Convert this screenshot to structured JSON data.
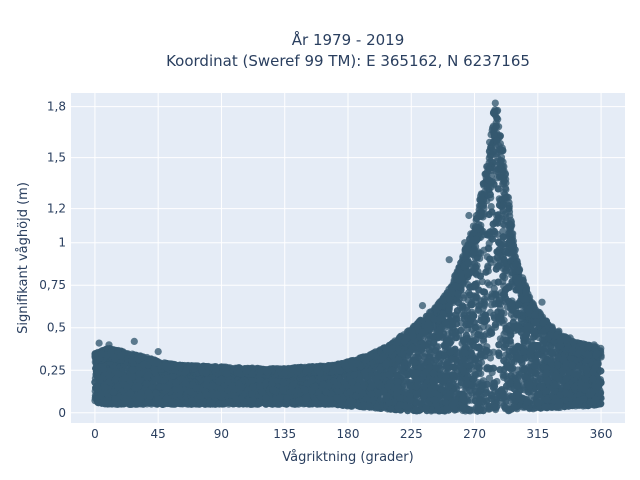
{
  "chart_data": {
    "type": "scatter",
    "title_lines": [
      "År 1979 - 2019",
      "Koordinat (Sweref 99 TM): E 365162, N 6237165"
    ],
    "xlabel": "Vågriktning (grader)",
    "ylabel": "Signifikant våghöjd (m)",
    "xlim": [
      -17,
      377
    ],
    "ylim": [
      -0.06,
      1.88
    ],
    "x_ticks": [
      0,
      45,
      90,
      135,
      180,
      225,
      270,
      315,
      360
    ],
    "x_tick_labels": [
      "0",
      "45",
      "90",
      "135",
      "180",
      "225",
      "270",
      "315",
      "360"
    ],
    "y_ticks": [
      0,
      0.25,
      0.5,
      0.75,
      1,
      1.2,
      1.5,
      1.8
    ],
    "y_tick_labels": [
      "0",
      "0,25",
      "0,5",
      "0,75",
      "1",
      "1,2",
      "1,5",
      "1,8"
    ],
    "grid": true,
    "legend": "none",
    "marker_color": "#34586f",
    "plot_bg": "#e5ecf6",
    "series": [
      {
        "envelope": {
          "x": [
            0,
            10,
            20,
            30,
            40,
            45,
            60,
            90,
            120,
            135,
            150,
            170,
            180,
            195,
            210,
            225,
            240,
            250,
            260,
            265,
            270,
            275,
            280,
            283,
            285,
            287,
            290,
            295,
            300,
            310,
            320,
            330,
            340,
            350,
            360
          ],
          "y_max": [
            0.35,
            0.38,
            0.36,
            0.34,
            0.32,
            0.3,
            0.28,
            0.27,
            0.26,
            0.26,
            0.27,
            0.28,
            0.3,
            0.34,
            0.4,
            0.5,
            0.6,
            0.7,
            0.88,
            1.0,
            1.12,
            1.3,
            1.55,
            1.75,
            1.84,
            1.8,
            1.55,
            1.2,
            0.9,
            0.66,
            0.55,
            0.47,
            0.42,
            0.4,
            0.38
          ],
          "y_min": [
            0.06,
            0.05,
            0.05,
            0.05,
            0.05,
            0.05,
            0.05,
            0.05,
            0.05,
            0.05,
            0.05,
            0.05,
            0.04,
            0.03,
            0.02,
            0.01,
            0.01,
            0.01,
            0.01,
            0.01,
            0.01,
            0.01,
            0.01,
            0.01,
            0.01,
            0.01,
            0.01,
            0.01,
            0.02,
            0.02,
            0.03,
            0.03,
            0.04,
            0.04,
            0.05
          ]
        },
        "outliers": [
          {
            "x": 3,
            "y": 0.41
          },
          {
            "x": 10,
            "y": 0.4
          },
          {
            "x": 28,
            "y": 0.42
          },
          {
            "x": 45,
            "y": 0.36
          },
          {
            "x": 238,
            "y": 0.59
          },
          {
            "x": 233,
            "y": 0.63
          },
          {
            "x": 252,
            "y": 0.9
          },
          {
            "x": 263,
            "y": 1.0
          },
          {
            "x": 266,
            "y": 1.16
          },
          {
            "x": 300,
            "y": 0.78
          },
          {
            "x": 318,
            "y": 0.65
          },
          {
            "x": 330,
            "y": 0.48
          },
          {
            "x": 338,
            "y": 0.44
          },
          {
            "x": 355,
            "y": 0.4
          }
        ]
      }
    ]
  }
}
